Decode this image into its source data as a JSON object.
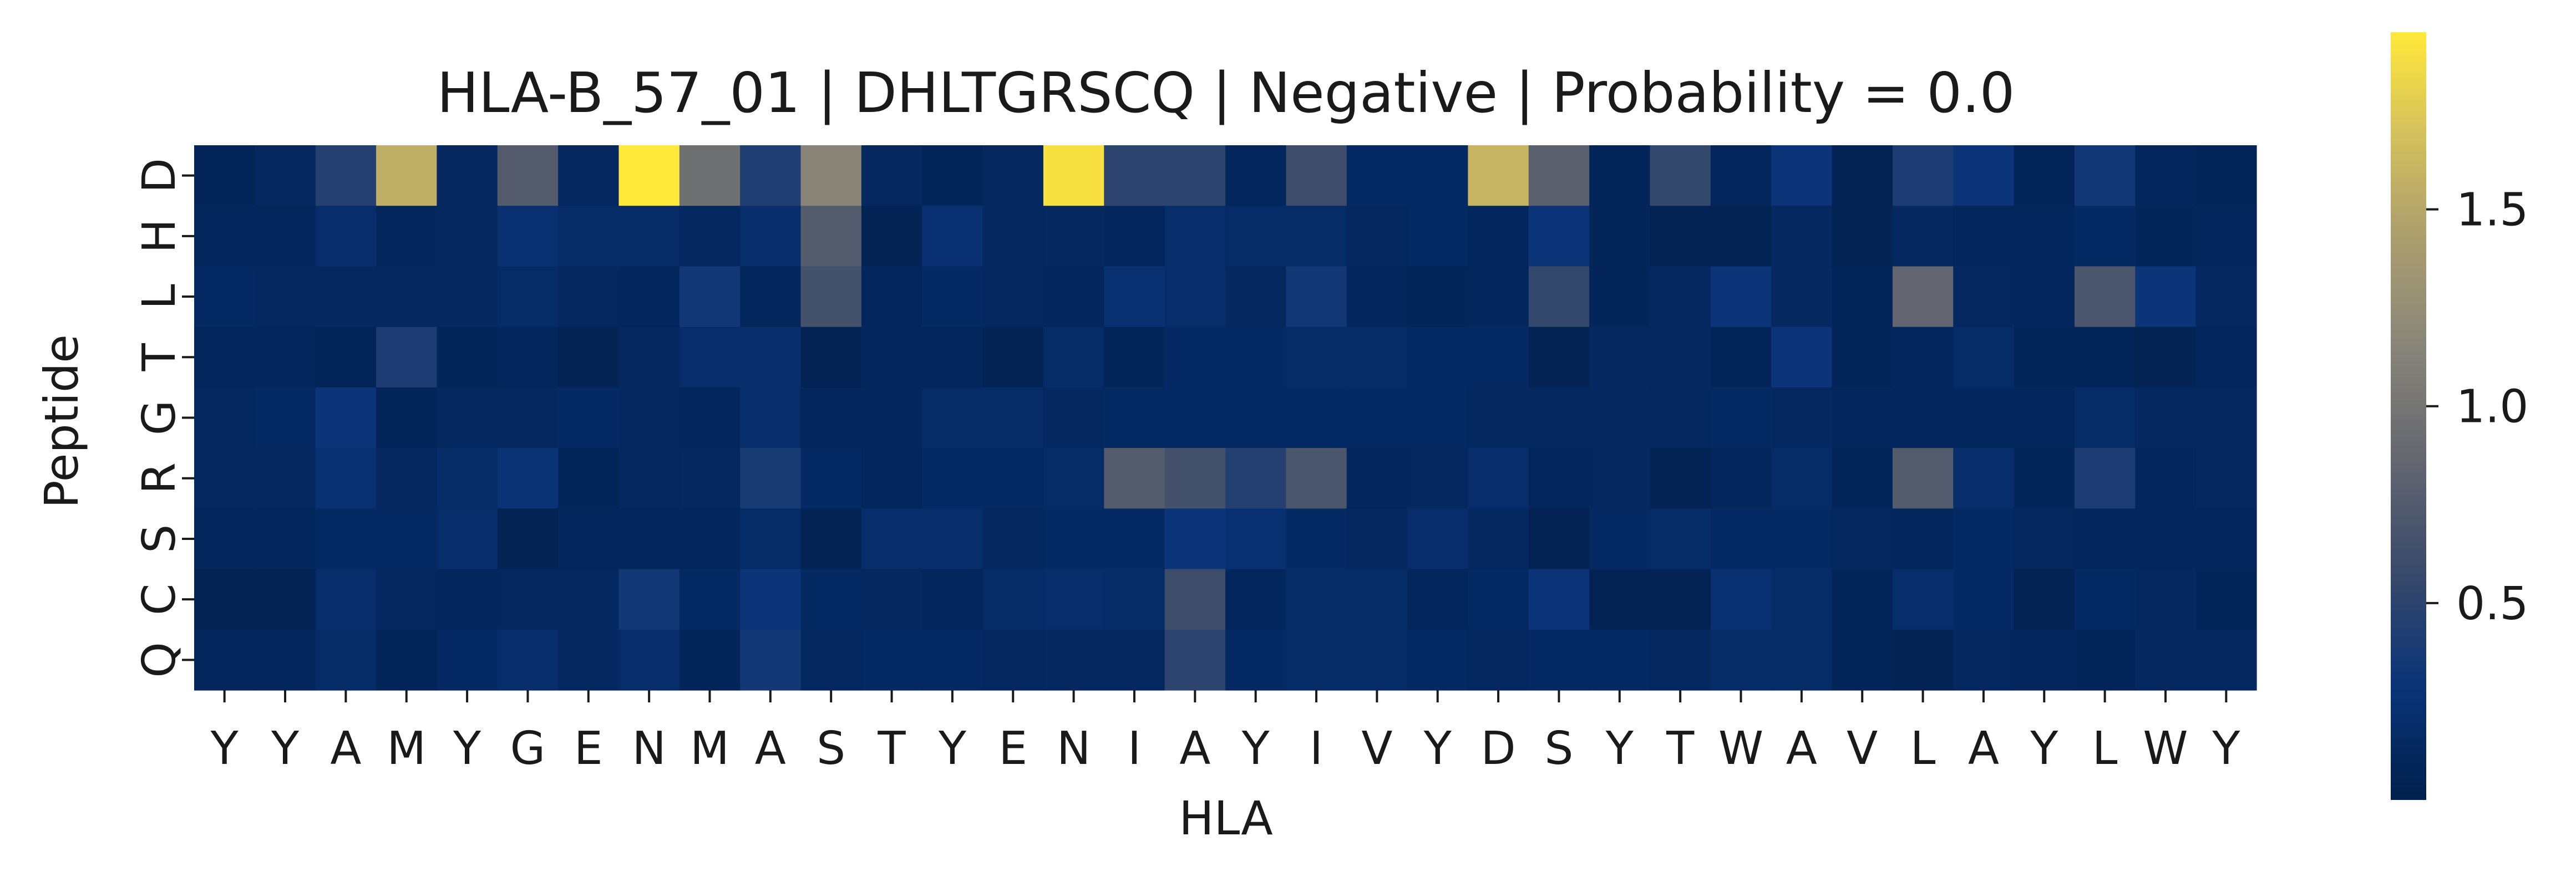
{
  "chart_data": {
    "type": "heatmap",
    "title": "HLA-B_57_01 | DHLTGRSCQ | Negative | Probability = 0.0",
    "xlabel": "HLA",
    "ylabel": "Peptide",
    "x_categories": [
      "Y",
      "Y",
      "A",
      "M",
      "Y",
      "G",
      "E",
      "N",
      "M",
      "A",
      "S",
      "T",
      "Y",
      "E",
      "N",
      "I",
      "A",
      "Y",
      "I",
      "V",
      "Y",
      "D",
      "S",
      "Y",
      "T",
      "W",
      "A",
      "V",
      "L",
      "A",
      "Y",
      "L",
      "W",
      "Y"
    ],
    "y_categories": [
      "D",
      "H",
      "L",
      "T",
      "G",
      "R",
      "S",
      "C",
      "Q"
    ],
    "values": [
      [
        0.08,
        0.12,
        0.45,
        1.55,
        0.12,
        0.75,
        0.12,
        1.95,
        0.95,
        0.42,
        1.15,
        0.12,
        0.08,
        0.12,
        1.9,
        0.5,
        0.5,
        0.1,
        0.6,
        0.15,
        0.15,
        1.6,
        0.8,
        0.08,
        0.55,
        0.1,
        0.3,
        0.05,
        0.4,
        0.3,
        0.08,
        0.35,
        0.1,
        0.08
      ],
      [
        0.1,
        0.1,
        0.2,
        0.1,
        0.12,
        0.25,
        0.18,
        0.18,
        0.12,
        0.2,
        0.75,
        0.05,
        0.25,
        0.12,
        0.12,
        0.1,
        0.2,
        0.18,
        0.18,
        0.12,
        0.15,
        0.1,
        0.3,
        0.08,
        0.05,
        0.05,
        0.12,
        0.05,
        0.12,
        0.1,
        0.1,
        0.15,
        0.08,
        0.1
      ],
      [
        0.15,
        0.12,
        0.12,
        0.12,
        0.12,
        0.18,
        0.12,
        0.1,
        0.35,
        0.1,
        0.65,
        0.1,
        0.15,
        0.12,
        0.1,
        0.25,
        0.2,
        0.12,
        0.35,
        0.1,
        0.08,
        0.1,
        0.55,
        0.08,
        0.12,
        0.3,
        0.12,
        0.08,
        0.85,
        0.12,
        0.1,
        0.7,
        0.3,
        0.12
      ],
      [
        0.1,
        0.1,
        0.08,
        0.4,
        0.08,
        0.1,
        0.05,
        0.12,
        0.2,
        0.2,
        0.05,
        0.1,
        0.1,
        0.05,
        0.18,
        0.08,
        0.15,
        0.15,
        0.18,
        0.18,
        0.15,
        0.15,
        0.05,
        0.12,
        0.12,
        0.08,
        0.3,
        0.08,
        0.1,
        0.18,
        0.08,
        0.08,
        0.05,
        0.1
      ],
      [
        0.12,
        0.15,
        0.3,
        0.08,
        0.12,
        0.12,
        0.15,
        0.12,
        0.1,
        0.2,
        0.1,
        0.1,
        0.18,
        0.18,
        0.12,
        0.15,
        0.15,
        0.15,
        0.15,
        0.15,
        0.15,
        0.12,
        0.12,
        0.12,
        0.12,
        0.15,
        0.12,
        0.1,
        0.1,
        0.1,
        0.1,
        0.18,
        0.12,
        0.12
      ],
      [
        0.12,
        0.12,
        0.25,
        0.12,
        0.18,
        0.28,
        0.08,
        0.12,
        0.12,
        0.38,
        0.15,
        0.1,
        0.15,
        0.15,
        0.18,
        0.75,
        0.65,
        0.45,
        0.7,
        0.1,
        0.12,
        0.2,
        0.1,
        0.12,
        0.05,
        0.1,
        0.18,
        0.08,
        0.75,
        0.2,
        0.08,
        0.4,
        0.1,
        0.12
      ],
      [
        0.1,
        0.1,
        0.15,
        0.15,
        0.2,
        0.05,
        0.1,
        0.1,
        0.1,
        0.18,
        0.05,
        0.2,
        0.2,
        0.12,
        0.15,
        0.15,
        0.3,
        0.25,
        0.15,
        0.12,
        0.2,
        0.12,
        0.05,
        0.15,
        0.18,
        0.15,
        0.15,
        0.12,
        0.1,
        0.15,
        0.12,
        0.1,
        0.1,
        0.1
      ],
      [
        0.05,
        0.05,
        0.2,
        0.12,
        0.1,
        0.12,
        0.12,
        0.35,
        0.15,
        0.3,
        0.15,
        0.12,
        0.1,
        0.18,
        0.2,
        0.18,
        0.6,
        0.1,
        0.18,
        0.18,
        0.1,
        0.15,
        0.3,
        0.05,
        0.05,
        0.25,
        0.18,
        0.08,
        0.2,
        0.15,
        0.05,
        0.15,
        0.12,
        0.08
      ],
      [
        0.1,
        0.1,
        0.18,
        0.08,
        0.15,
        0.2,
        0.12,
        0.2,
        0.08,
        0.35,
        0.12,
        0.15,
        0.15,
        0.12,
        0.12,
        0.12,
        0.5,
        0.15,
        0.18,
        0.18,
        0.15,
        0.12,
        0.15,
        0.15,
        0.12,
        0.18,
        0.18,
        0.08,
        0.05,
        0.12,
        0.1,
        0.08,
        0.12,
        0.12
      ]
    ],
    "vmin": 0.0,
    "vmax": 1.95,
    "colormap": "cividis",
    "colorbar_ticks": [
      "0.5",
      "1.0",
      "1.5"
    ],
    "colorbar_tick_values": [
      0.5,
      1.0,
      1.5
    ],
    "grid": false,
    "legend": "colorbar-right"
  }
}
